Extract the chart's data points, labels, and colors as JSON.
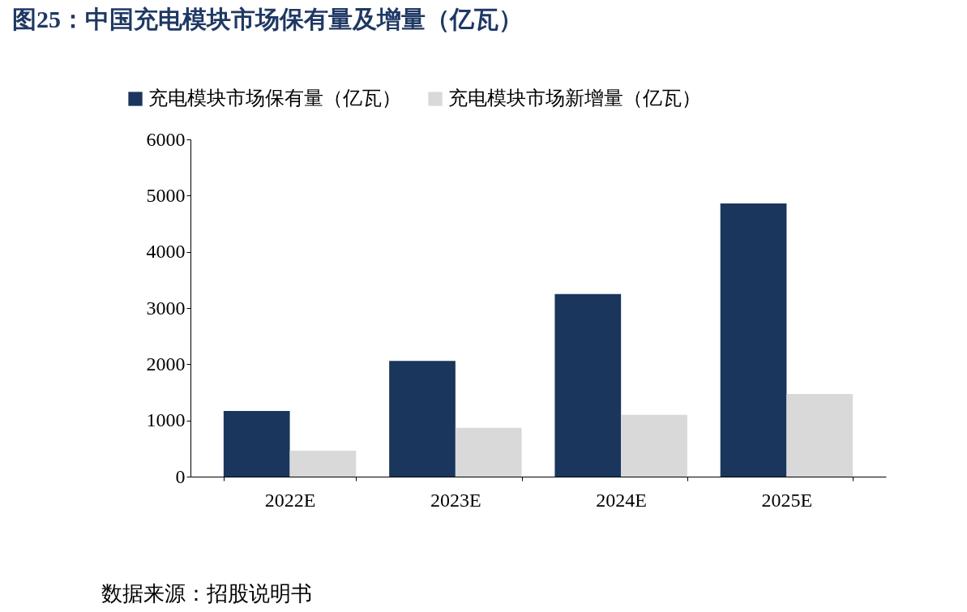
{
  "chart_data": {
    "type": "bar",
    "title": "图25：中国充电模块市场保有量及增量（亿瓦）",
    "categories": [
      "2022E",
      "2023E",
      "2024E",
      "2025E"
    ],
    "series": [
      {
        "name": "充电模块市场保有量（亿瓦）",
        "color": "#1a365d",
        "values": [
          1170,
          2060,
          3250,
          4860
        ]
      },
      {
        "name": "充电模块市场新增量（亿瓦）",
        "color": "#d9d9d9",
        "values": [
          460,
          870,
          1100,
          1470
        ]
      }
    ],
    "ylim": [
      0,
      6000
    ],
    "yticks": [
      0,
      1000,
      2000,
      3000,
      4000,
      5000,
      6000
    ],
    "grid": false,
    "legend": "top left",
    "annotations": [
      "数据来源：招股说明书"
    ]
  }
}
